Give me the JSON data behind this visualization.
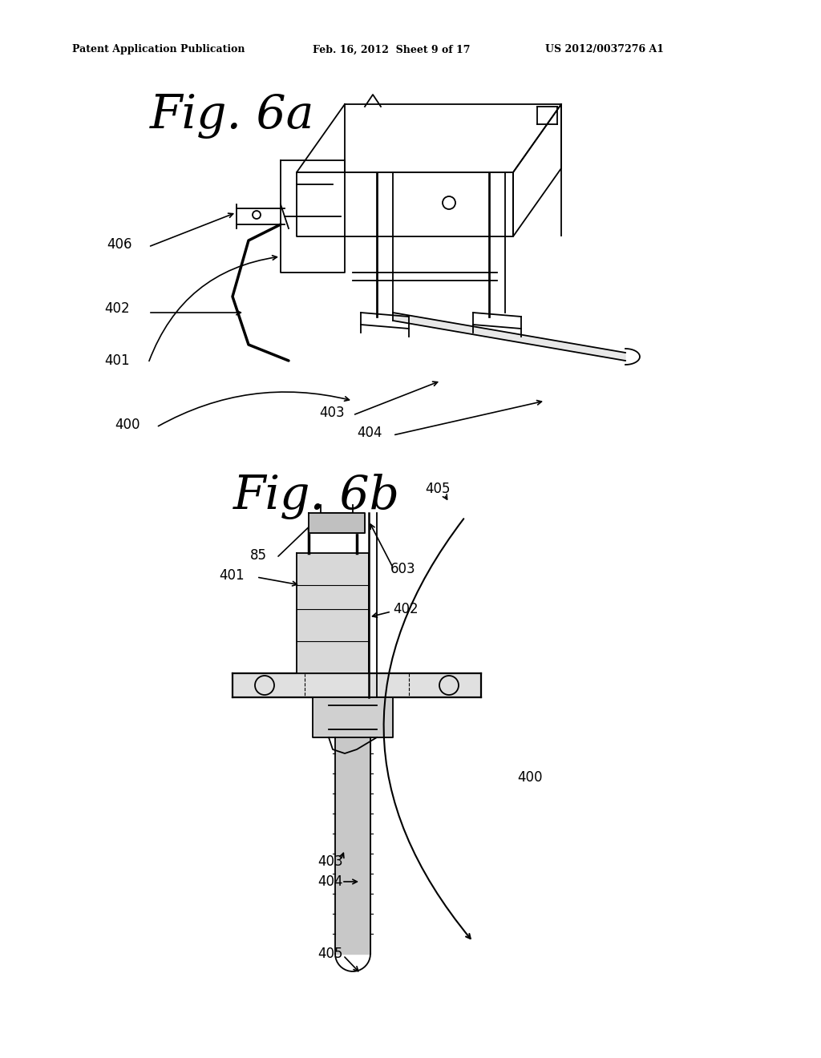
{
  "background_color": "#ffffff",
  "header_left": "Patent Application Publication",
  "header_center": "Feb. 16, 2012  Sheet 9 of 17",
  "header_right": "US 2012/0037276 A1",
  "fig6a_title": "Fig. 6a",
  "fig6b_title": "Fig. 6b",
  "lw": 1.3,
  "lfs": 12
}
